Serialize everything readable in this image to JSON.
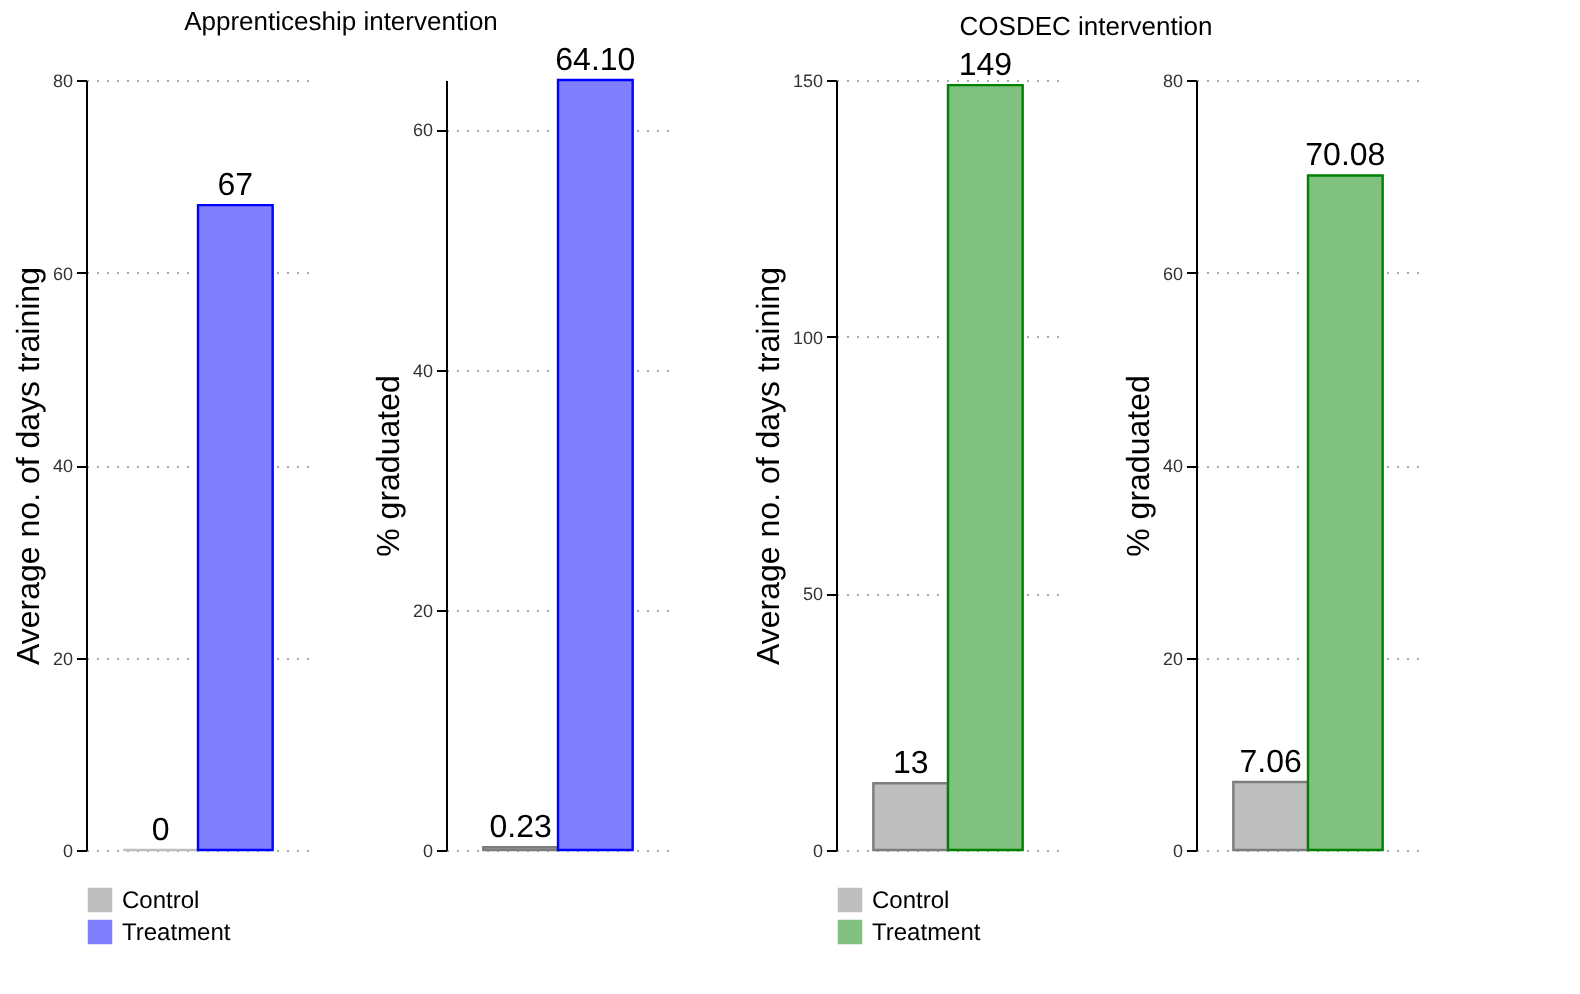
{
  "chart_data": [
    {
      "type": "bar",
      "title": "Apprenticeship intervention",
      "ylabel": "Average no. of days training",
      "categories": [
        null
      ],
      "ylim": [
        0,
        80
      ],
      "yticks": [
        0,
        20,
        40,
        60,
        80
      ],
      "grid": "y",
      "tick_labels": "y",
      "legend": "bottom",
      "series": [
        {
          "name": "Control",
          "color": "#bebebe",
          "values": [
            0
          ],
          "value_labels": [
            "0"
          ]
        },
        {
          "name": "Treatment",
          "color": "#8080ff",
          "values": [
            67
          ],
          "value_labels": [
            "67"
          ]
        }
      ]
    },
    {
      "type": "bar",
      "ylabel": "% graduated",
      "categories": [
        null
      ],
      "ylim": [
        0,
        64.1
      ],
      "yticks": [
        0,
        20,
        40,
        60
      ],
      "grid": "y",
      "tick_labels": "y",
      "series": [
        {
          "color": "#bebebe",
          "values": [
            0.23
          ],
          "value_labels": [
            "0.23"
          ]
        },
        {
          "color": "#8080ff",
          "values": [
            64.1
          ],
          "value_labels": [
            "64.10"
          ]
        }
      ]
    },
    {
      "type": "bar",
      "title": "COSDEC intervention",
      "ylabel": "Average no. of days training",
      "categories": [
        null
      ],
      "ylim": [
        0,
        150
      ],
      "yticks": [
        0,
        50,
        100,
        150
      ],
      "grid": "y",
      "tick_labels": "y",
      "legend": "bottom",
      "series": [
        {
          "name": "Control",
          "color": "#bebebe",
          "values": [
            13
          ],
          "value_labels": [
            "13"
          ]
        },
        {
          "name": "Treatment",
          "color": "#80c080",
          "values": [
            149
          ],
          "value_labels": [
            "149"
          ]
        }
      ]
    },
    {
      "type": "bar",
      "ylabel": "% graduated",
      "categories": [
        null
      ],
      "ylim": [
        0,
        80
      ],
      "yticks": [
        0,
        20,
        40,
        60,
        80
      ],
      "grid": "y",
      "tick_labels": "y",
      "series": [
        {
          "color": "#bebebe",
          "values": [
            7.06
          ],
          "value_labels": [
            "7.06"
          ]
        },
        {
          "color": "#80c080",
          "values": [
            70.08
          ],
          "value_labels": [
            "70.08"
          ]
        }
      ]
    }
  ]
}
